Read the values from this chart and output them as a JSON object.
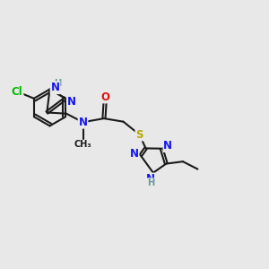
{
  "bg_color": "#e8e8e8",
  "bond_color": "#1a1a1a",
  "bond_lw": 1.5,
  "dbl_off": 0.055,
  "atom_colors": {
    "N": "#1515ee",
    "O": "#dd1111",
    "S": "#b8a800",
    "Cl": "#00bb00",
    "H": "#6a9a9a",
    "C": "#1a1a1a"
  },
  "fs": 8.5,
  "fss": 7.2,
  "fig_w": 3.0,
  "fig_h": 3.0,
  "dpi": 100,
  "xlim": [
    0,
    10
  ],
  "ylim": [
    0,
    10
  ]
}
